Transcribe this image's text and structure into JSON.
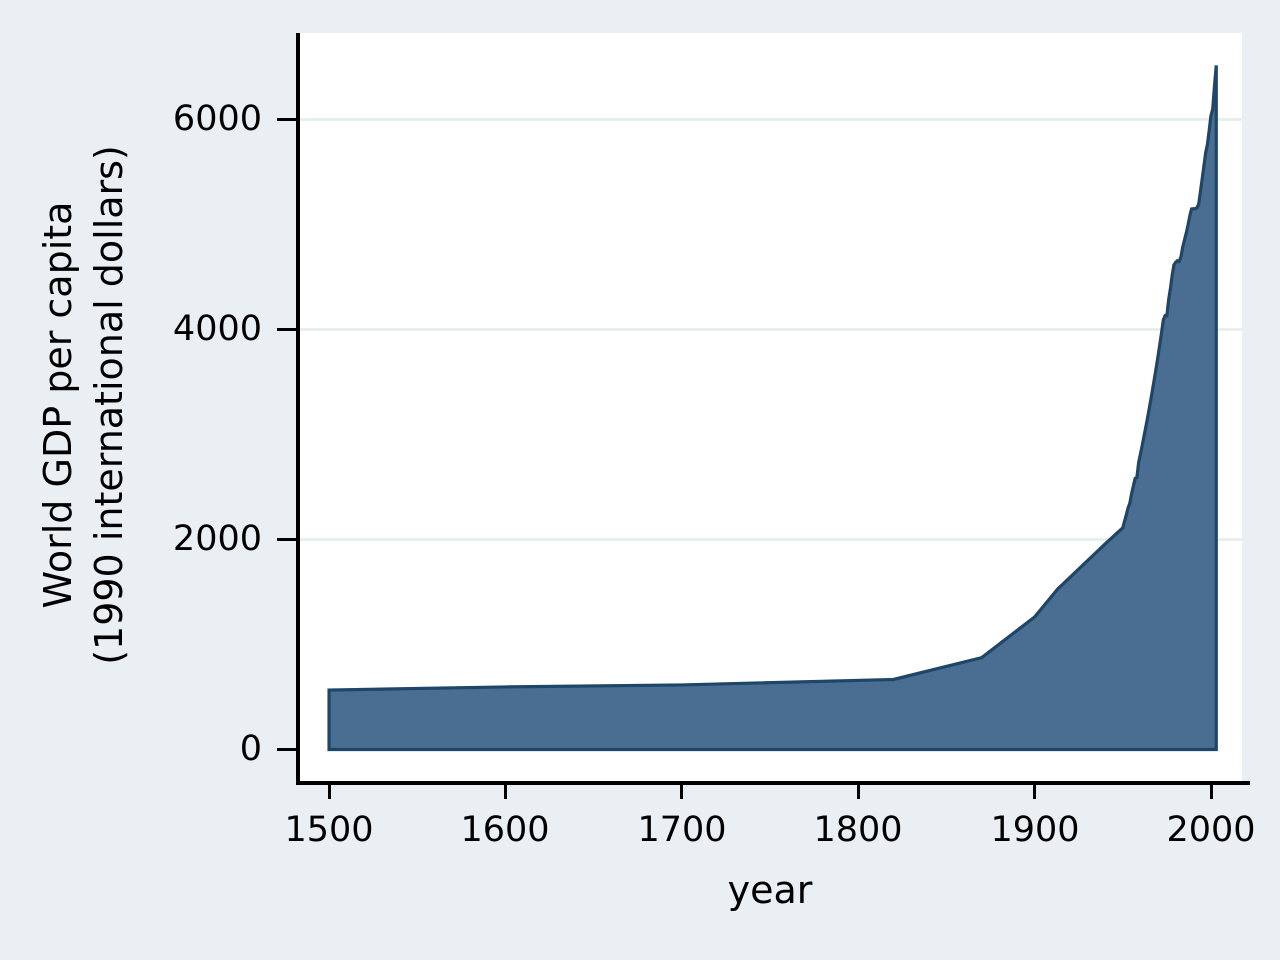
{
  "chart_data": {
    "type": "area",
    "title": "",
    "xlabel": "year",
    "ylabel_line1": "World GDP per capita",
    "ylabel_line2": "(1990 international dollars)",
    "x_tick_labels": [
      "1500",
      "1600",
      "1700",
      "1800",
      "1900",
      "2000"
    ],
    "y_tick_labels": [
      "0",
      "2000",
      "4000",
      "6000"
    ],
    "xlim": [
      1482.4,
      2017.6
    ],
    "ylim": [
      -300,
      6824
    ],
    "y_gridlines": [
      2000,
      4000,
      6000
    ],
    "grid": "horizontal only",
    "legend": "none",
    "baseline": 0,
    "series": [
      {
        "name": "World GDP per capita (1990 international dollars)",
        "x": [
          1500,
          1600,
          1700,
          1820,
          1870,
          1900,
          1913,
          1940,
          1950,
          1951,
          1952,
          1953,
          1954,
          1955,
          1956,
          1957,
          1958,
          1959,
          1960,
          1961,
          1962,
          1963,
          1964,
          1965,
          1966,
          1967,
          1968,
          1969,
          1970,
          1971,
          1972,
          1973,
          1974,
          1975,
          1976,
          1977,
          1978,
          1979,
          1980,
          1981,
          1982,
          1983,
          1984,
          1985,
          1986,
          1987,
          1988,
          1989,
          1990,
          1991,
          1992,
          1993,
          1994,
          1995,
          1996,
          1997,
          1998,
          1999,
          2000,
          2001,
          2002,
          2003
        ],
        "y": [
          566,
          596,
          615,
          667,
          875,
          1262,
          1526,
          1958,
          2111,
          2173,
          2236,
          2301,
          2345,
          2437,
          2508,
          2581,
          2590,
          2733,
          2813,
          2895,
          2979,
          3066,
          3155,
          3247,
          3342,
          3439,
          3539,
          3642,
          3748,
          3858,
          3970,
          4091,
          4133,
          4131,
          4283,
          4388,
          4516,
          4615,
          4641,
          4655,
          4648,
          4694,
          4786,
          4853,
          4920,
          4995,
          5083,
          5148,
          5150,
          5150,
          5160,
          5190,
          5309,
          5431,
          5556,
          5684,
          5764,
          5897,
          6038,
          6100,
          6320,
          6516
        ]
      }
    ],
    "colors": {
      "background": "#e9eff2",
      "plot_background": "#ffffff",
      "grid": "#e4eef0",
      "axis": "#000000",
      "area_fill": "#4a6e91",
      "area_stroke": "#1d4668"
    }
  }
}
